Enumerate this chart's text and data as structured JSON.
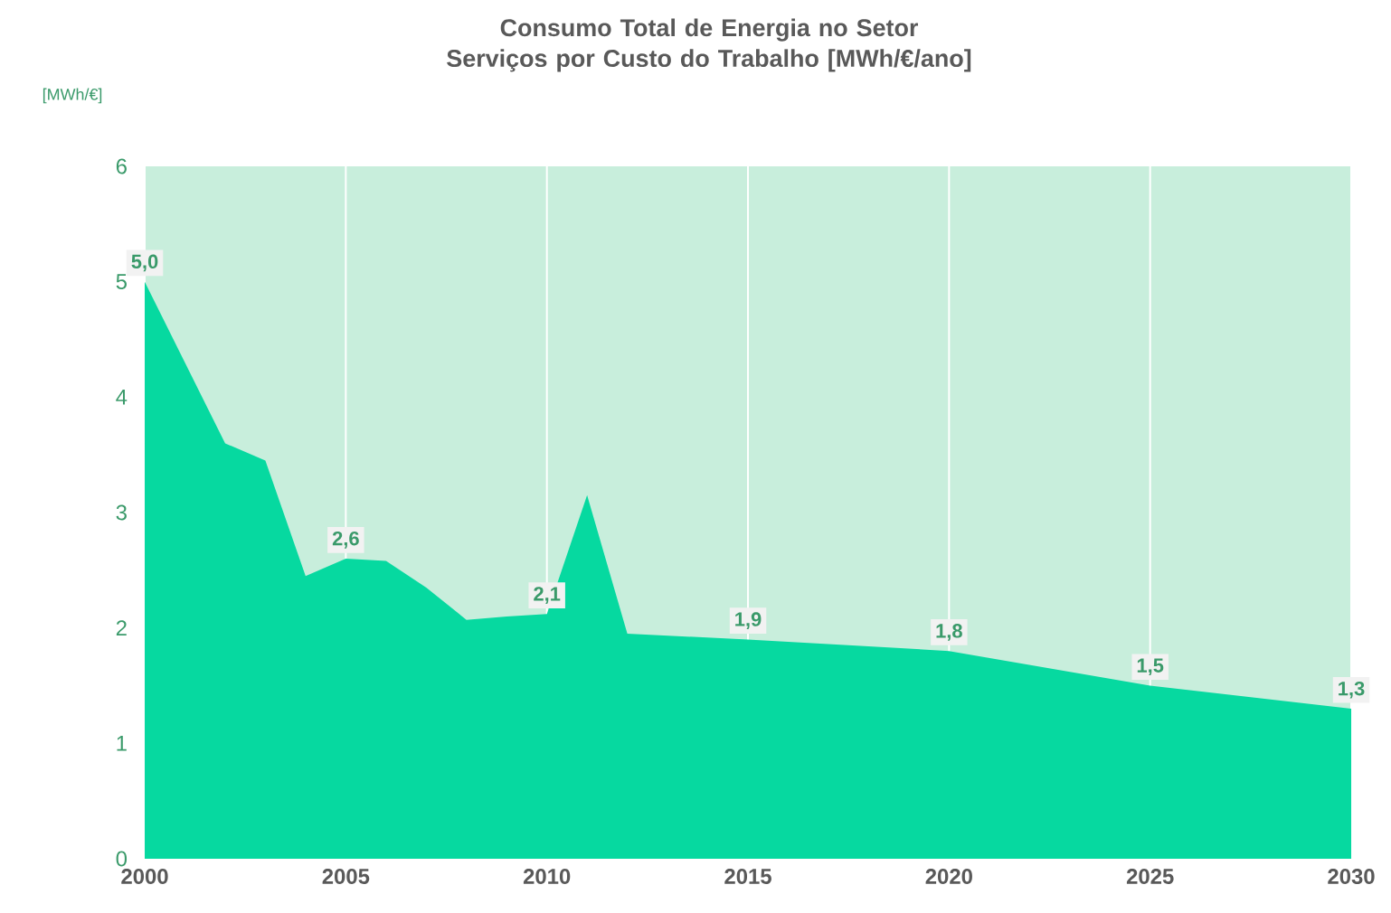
{
  "chart_data": {
    "type": "area",
    "title": "Consumo Total de Energia no Setor Serviços por Custo do Trabalho [MWh/€/ano]",
    "ylabel": "[MWh/€]",
    "x": [
      2000,
      2001,
      2002,
      2003,
      2004,
      2005,
      2006,
      2007,
      2008,
      2009,
      2010,
      2011,
      2012,
      2015,
      2020,
      2025,
      2030
    ],
    "values": [
      5.0,
      4.3,
      3.6,
      3.45,
      2.45,
      2.6,
      2.58,
      2.35,
      2.07,
      2.1,
      2.12,
      3.15,
      1.95,
      1.9,
      1.8,
      1.5,
      1.3
    ],
    "value_labels": [
      "5,0",
      null,
      null,
      null,
      null,
      "2,6",
      null,
      null,
      null,
      null,
      "2,1",
      null,
      null,
      "1,9",
      "1,8",
      "1,5",
      "1,3"
    ],
    "color": "#06d9a0",
    "xlim": [
      2000,
      2030
    ],
    "ylim": [
      0,
      6
    ],
    "xticks": [
      2000,
      2005,
      2010,
      2015,
      2020,
      2025,
      2030
    ],
    "yticks": [
      0,
      1,
      2,
      3,
      4,
      5,
      6
    ],
    "grid": "x"
  }
}
